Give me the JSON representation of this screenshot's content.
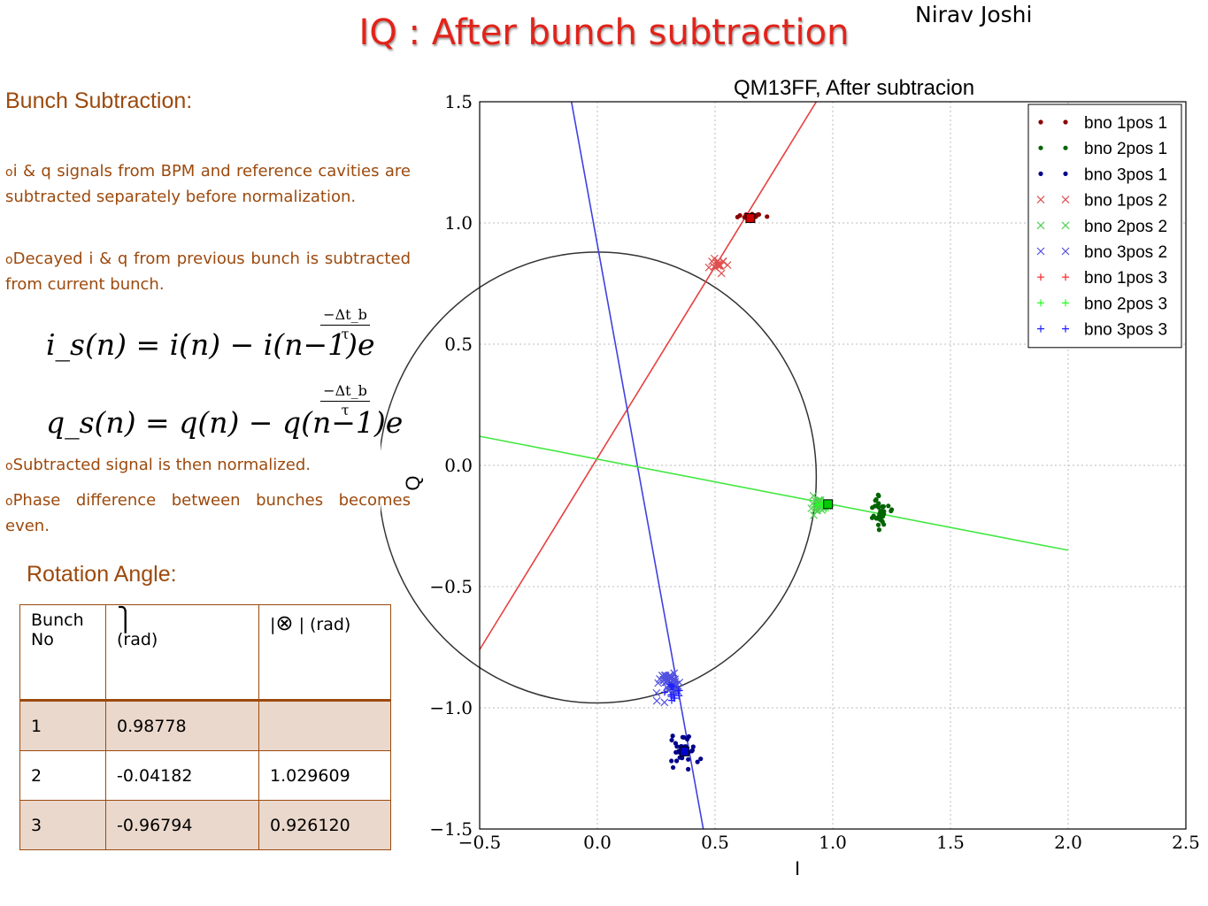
{
  "slide": {
    "title": "IQ : After bunch subtraction",
    "author": "Nirav Joshi"
  },
  "left": {
    "section1_heading": "Bunch Subtraction:",
    "bullets": [
      "i & q signals from BPM and reference cavities are subtracted separately before normalization.",
      "Decayed i & q from previous bunch is subtracted from current bunch.",
      "Subtracted signal is then normalized.",
      "Phase difference between bunches becomes even."
    ],
    "formula_i": "i_s(n) = i(n) − i(n−1)e",
    "formula_q": "q_s(n) = q(n) − q(n−1)e",
    "exponent_numerator": "−Δt_b",
    "exponent_denominator": "τ",
    "section2_heading": "Rotation Angle:"
  },
  "table": {
    "headers": [
      "Bunch No",
      "(rad)",
      "| (rad)"
    ],
    "rows": [
      [
        "1",
        "0.98778",
        ""
      ],
      [
        "2",
        "-0.04182",
        "1.029609"
      ],
      [
        "3",
        "-0.96794",
        "0.926120"
      ]
    ]
  },
  "chart_data": {
    "type": "scatter",
    "title": "QM13FF, After subtracion",
    "xlabel": "I",
    "ylabel": "Q",
    "xlim": [
      -0.5,
      2.5
    ],
    "ylim": [
      -1.5,
      1.5
    ],
    "xticks": [
      -0.5,
      0.0,
      0.5,
      1.0,
      1.5,
      2.0,
      2.5
    ],
    "yticks": [
      -1.5,
      -1.0,
      -0.5,
      0.0,
      0.5,
      1.0,
      1.5
    ],
    "grid": true,
    "legend_position": "top-right",
    "legend": [
      {
        "name": "bno 1pos 1",
        "marker": "dot",
        "color": "#8b0000"
      },
      {
        "name": "bno 2pos 1",
        "marker": "dot",
        "color": "#006400"
      },
      {
        "name": "bno 3pos 1",
        "marker": "dot",
        "color": "#00008b"
      },
      {
        "name": "bno 1pos 2",
        "marker": "x",
        "color": "#e05050"
      },
      {
        "name": "bno 2pos 2",
        "marker": "x",
        "color": "#50d050"
      },
      {
        "name": "bno 3pos 2",
        "marker": "x",
        "color": "#5050e0"
      },
      {
        "name": "bno 1pos 3",
        "marker": "plus",
        "color": "#ff2020"
      },
      {
        "name": "bno 2pos 3",
        "marker": "plus",
        "color": "#20ff20"
      },
      {
        "name": "bno 3pos 3",
        "marker": "plus",
        "color": "#2020ff"
      }
    ],
    "clusters": [
      {
        "series": "bno 1pos 1",
        "center": [
          0.65,
          1.03
        ],
        "spread": [
          0.05,
          0.012
        ],
        "n": 20
      },
      {
        "series": "bno 1pos 2",
        "center": [
          0.52,
          0.83
        ],
        "spread": [
          0.035,
          0.03
        ],
        "n": 18
      },
      {
        "series": "bno 2pos 1",
        "center": [
          1.2,
          -0.2
        ],
        "spread": [
          0.04,
          0.07
        ],
        "n": 35
      },
      {
        "series": "bno 2pos 2",
        "center": [
          0.94,
          -0.15
        ],
        "spread": [
          0.035,
          0.04
        ],
        "n": 30
      },
      {
        "series": "bno 2pos 3",
        "center": [
          0.97,
          -0.16
        ],
        "spread": [
          0.04,
          0.03
        ],
        "n": 10
      },
      {
        "series": "bno 3pos 1",
        "center": [
          0.37,
          -1.18
        ],
        "spread": [
          0.05,
          0.07
        ],
        "n": 40
      },
      {
        "series": "bno 3pos 2",
        "center": [
          0.3,
          -0.9
        ],
        "spread": [
          0.05,
          0.05
        ],
        "n": 40
      },
      {
        "series": "bno 3pos 3",
        "center": [
          0.32,
          -0.93
        ],
        "spread": [
          0.04,
          0.04
        ],
        "n": 15
      }
    ],
    "means": [
      {
        "color": "#cc0000",
        "point": [
          0.65,
          1.02
        ]
      },
      {
        "color": "#00cc00",
        "point": [
          0.98,
          -0.16
        ]
      },
      {
        "color": "#0000cc",
        "point": [
          0.37,
          -1.18
        ]
      }
    ],
    "fit_lines": [
      {
        "color": "#e84040",
        "from": [
          -0.5,
          -0.76
        ],
        "to": [
          0.93,
          1.5
        ]
      },
      {
        "color": "#4040e0",
        "from": [
          -0.11,
          1.5
        ],
        "to": [
          0.45,
          -1.5
        ]
      },
      {
        "color": "#40e840",
        "from": [
          -0.5,
          0.12
        ],
        "to": [
          2.0,
          -0.35
        ]
      }
    ],
    "circle": {
      "center": [
        0.0,
        -0.05
      ],
      "radius": 0.93
    }
  }
}
